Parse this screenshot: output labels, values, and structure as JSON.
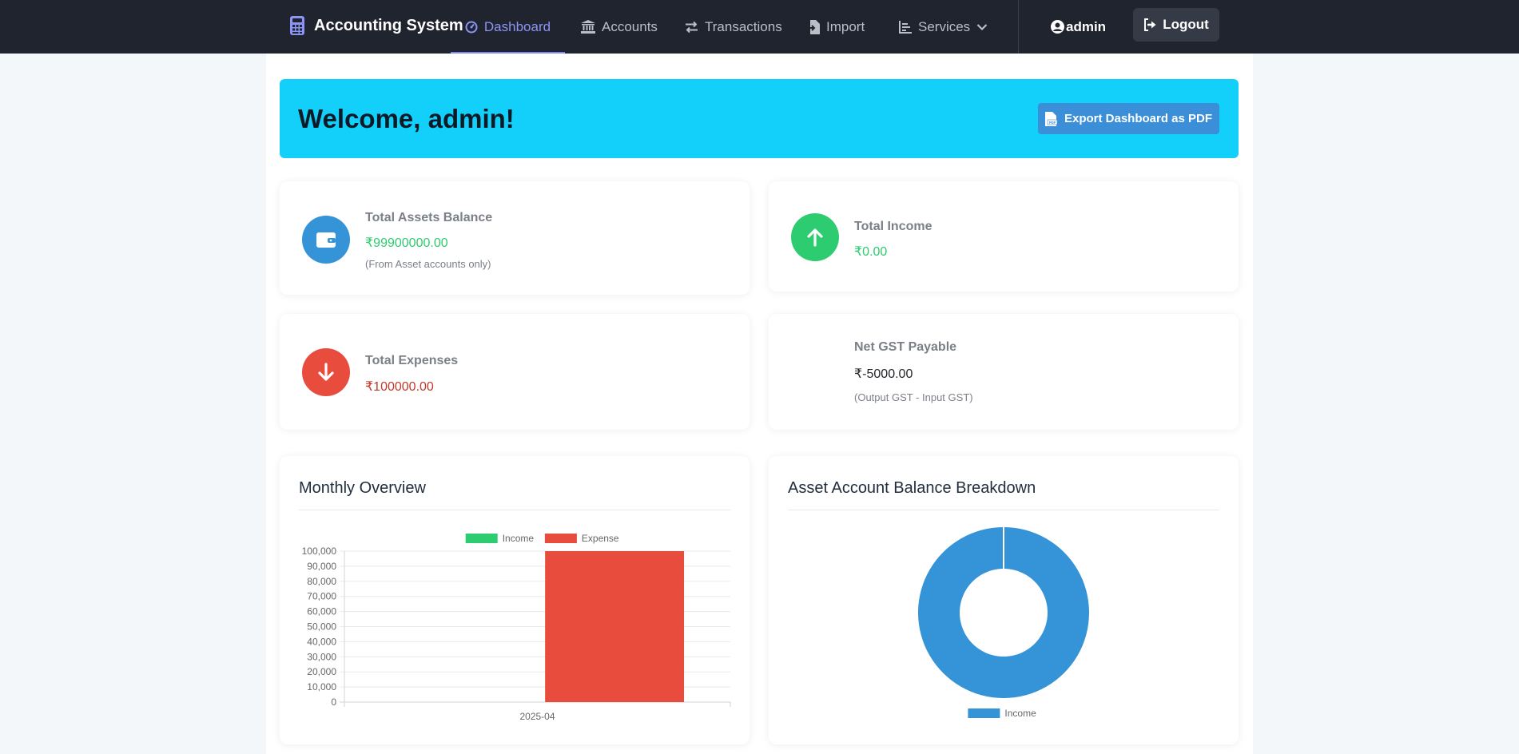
{
  "nav": {
    "brand": "Accounting System",
    "links": [
      {
        "label": "Dashboard",
        "icon": "dashboard-icon",
        "active": true
      },
      {
        "label": "Accounts",
        "icon": "bank-icon"
      },
      {
        "label": "Transactions",
        "icon": "exchange-icon"
      },
      {
        "label": "Import",
        "icon": "file-import-icon"
      },
      {
        "label": "Services",
        "icon": "chart-icon"
      }
    ],
    "user": "admin",
    "logout": "Logout"
  },
  "welcome": {
    "title": "Welcome, admin!",
    "export_label": "Export Dashboard as PDF"
  },
  "stats": {
    "assets": {
      "title": "Total Assets Balance",
      "value": "₹99900000.00",
      "note": "(From Asset accounts only)"
    },
    "income": {
      "title": "Total Income",
      "value": "₹0.00"
    },
    "expenses": {
      "title": "Total Expenses",
      "value": "₹100000.00"
    },
    "gst": {
      "title": "Net GST Payable",
      "value": "₹-5000.00",
      "note": "(Output GST - Input GST)"
    }
  },
  "colors": {
    "income": "#2ecc71",
    "expense": "#e74c3c",
    "asset": "#3594d7",
    "accent": "#13d0fa",
    "nav_bg": "#20242e"
  },
  "charts": {
    "monthly_title": "Monthly Overview",
    "breakdown_title": "Asset Account Balance Breakdown"
  },
  "chart_data": [
    {
      "type": "bar",
      "categories": [
        "2025-04"
      ],
      "series": [
        {
          "name": "Income",
          "values": [
            0
          ],
          "color": "#2ecc71"
        },
        {
          "name": "Expense",
          "values": [
            100000
          ],
          "color": "#e74c3c"
        }
      ],
      "ylim": [
        0,
        100000
      ],
      "yticks": [
        "0",
        "10,000",
        "20,000",
        "30,000",
        "40,000",
        "50,000",
        "60,000",
        "70,000",
        "80,000",
        "90,000",
        "100,000"
      ],
      "grid": true,
      "legend": "top"
    },
    {
      "type": "pie",
      "labels": [
        "Income"
      ],
      "values": [
        99900000
      ],
      "colors": [
        "#3594d7"
      ],
      "legend": "bottom"
    }
  ]
}
